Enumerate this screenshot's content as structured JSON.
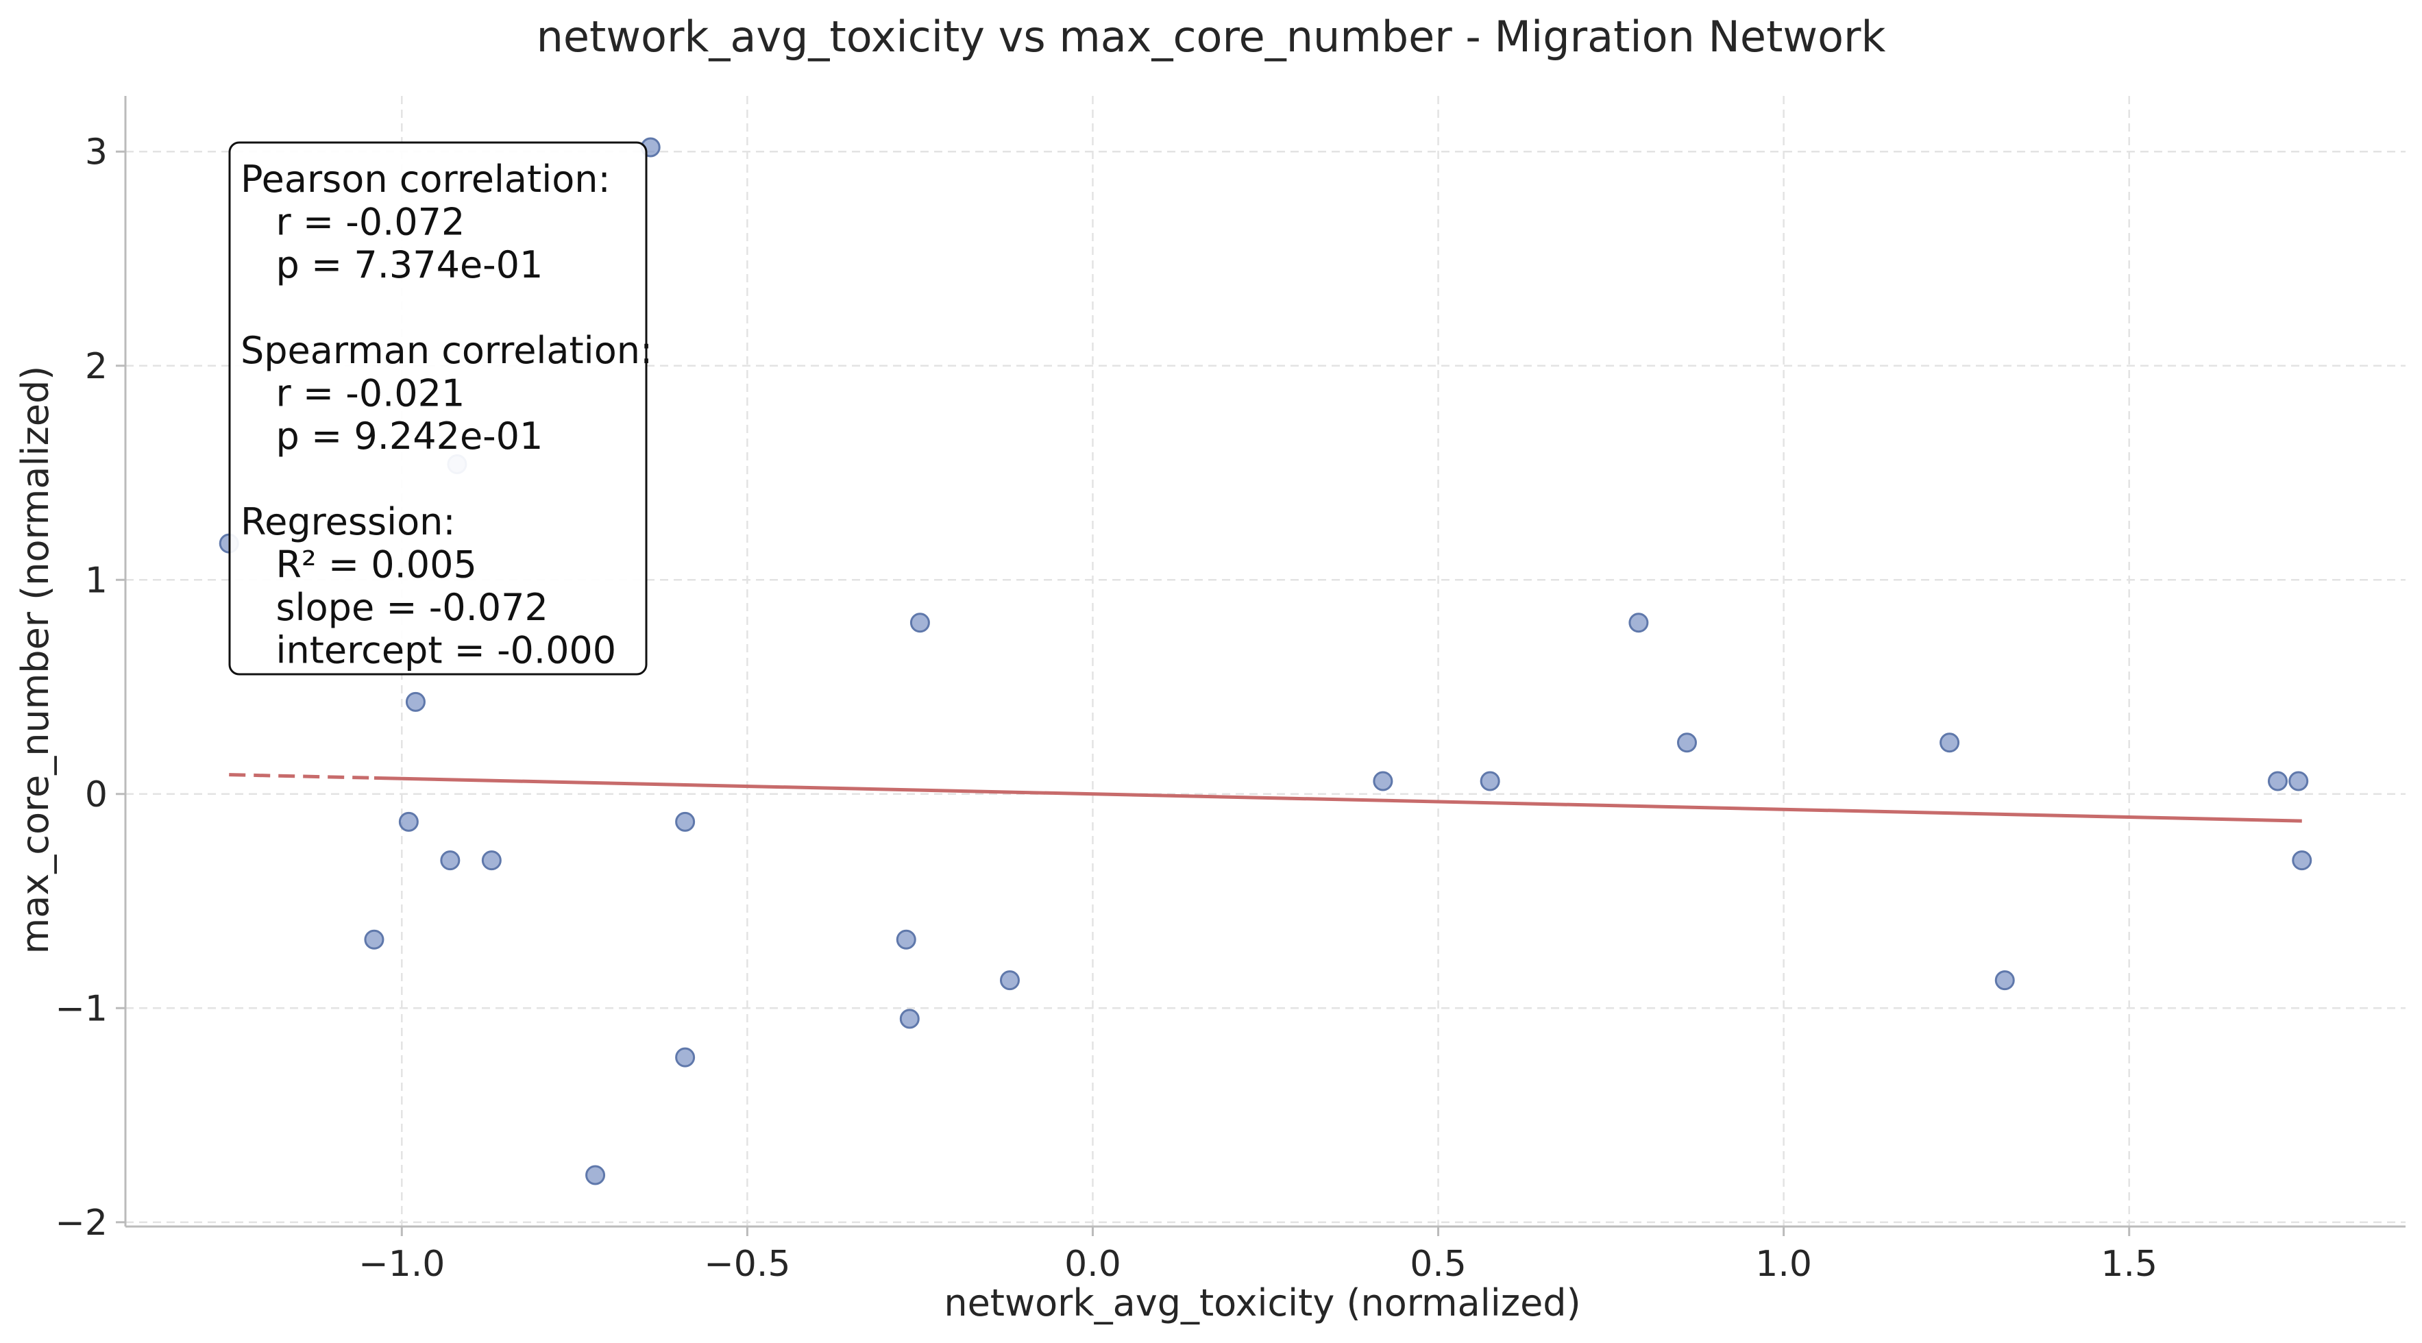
{
  "chart_data": {
    "type": "scatter",
    "title": "network_avg_toxicity vs max_core_number - Migration Network",
    "xlabel": "network_avg_toxicity (normalized)",
    "ylabel": "max_core_number (normalized)",
    "xlim": [
      -1.4,
      1.9
    ],
    "ylim": [
      -2.02,
      3.26
    ],
    "xticks": [
      -1.0,
      -0.5,
      0.0,
      0.5,
      1.0,
      1.5
    ],
    "xtick_labels": [
      "−1.0",
      "−0.5",
      "0.0",
      "0.5",
      "1.0",
      "1.5"
    ],
    "yticks": [
      -2,
      -1,
      0,
      1,
      2,
      3
    ],
    "ytick_labels": [
      "−2",
      "−1",
      "0",
      "1",
      "2",
      "3"
    ],
    "grid": true,
    "points": [
      {
        "x": -1.25,
        "y": 1.17
      },
      {
        "x": -0.92,
        "y": 1.54
      },
      {
        "x": -0.64,
        "y": 3.02
      },
      {
        "x": -0.98,
        "y": 0.43
      },
      {
        "x": -0.99,
        "y": -0.13
      },
      {
        "x": -0.93,
        "y": -0.31
      },
      {
        "x": -0.87,
        "y": -0.31
      },
      {
        "x": -1.04,
        "y": -0.68
      },
      {
        "x": -0.72,
        "y": -1.78
      },
      {
        "x": -0.59,
        "y": -0.13
      },
      {
        "x": -0.59,
        "y": -1.23
      },
      {
        "x": -0.27,
        "y": -0.68
      },
      {
        "x": -0.265,
        "y": -1.05
      },
      {
        "x": -0.25,
        "y": 0.8
      },
      {
        "x": -0.12,
        "y": -0.87
      },
      {
        "x": 0.42,
        "y": 0.06
      },
      {
        "x": 0.575,
        "y": 0.06
      },
      {
        "x": 0.79,
        "y": 0.8
      },
      {
        "x": 0.86,
        "y": 0.24
      },
      {
        "x": 1.24,
        "y": 0.24
      },
      {
        "x": 1.32,
        "y": -0.87
      },
      {
        "x": 1.715,
        "y": 0.06
      },
      {
        "x": 1.745,
        "y": 0.06
      },
      {
        "x": 1.75,
        "y": -0.31
      }
    ],
    "regression": {
      "slope": -0.072,
      "intercept": -0.0,
      "x_range": [
        -1.25,
        1.75
      ],
      "dashed_until_x": -1.04
    },
    "annotation_lines": [
      "Pearson correlation:",
      "  r = -0.072",
      "  p = 7.374e-01",
      "",
      "Spearman correlation:",
      "  r = -0.021",
      "  p = 9.242e-01",
      "",
      "Regression:",
      "  R² = 0.005",
      "  slope = -0.072",
      "  intercept = -0.000"
    ],
    "colors": {
      "points": "#7f96c6",
      "fit_line": "#c76b6b"
    }
  }
}
